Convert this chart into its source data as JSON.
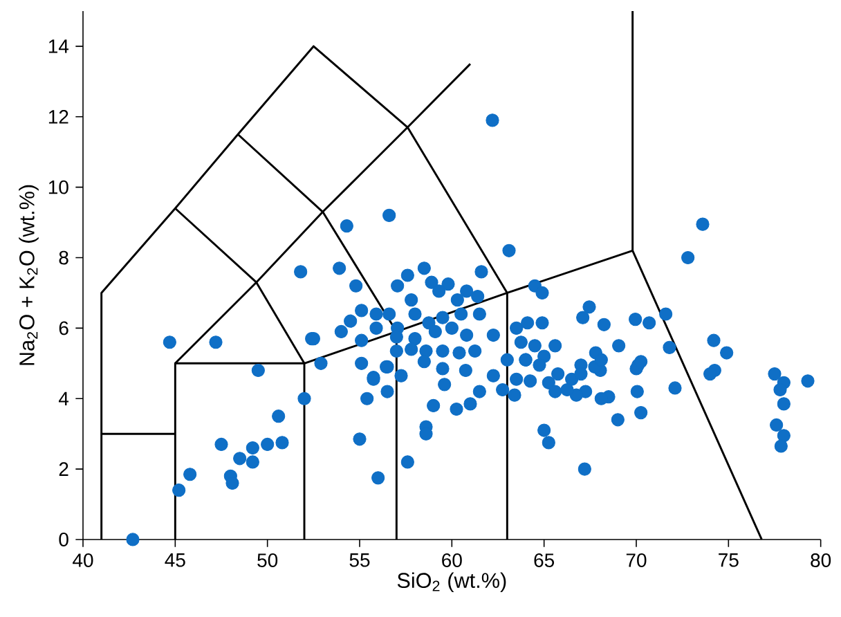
{
  "chart_data": {
    "type": "scatter",
    "xlabel": "SiO$_{2}$ (wt.%)",
    "ylabel": "Na$_{2}$O + K$_{2}$O (wt.%)",
    "xlim": [
      40,
      80
    ],
    "ylim": [
      0,
      15
    ],
    "xticks": [
      40,
      45,
      50,
      55,
      60,
      65,
      70,
      75,
      80
    ],
    "yticks": [
      0,
      2,
      4,
      6,
      8,
      10,
      12,
      14
    ],
    "grid": false,
    "legend": false,
    "series": [
      {
        "type": "line",
        "color": "#000000",
        "x": [
          41,
          41,
          45,
          48.4,
          52.5,
          57.6,
          63,
          63
        ],
        "values": [
          0,
          7,
          9.4,
          11.5,
          14,
          11.7,
          7,
          0
        ]
      },
      {
        "type": "line",
        "color": "#000000",
        "x": [
          41,
          45
        ],
        "values": [
          3,
          3
        ]
      },
      {
        "type": "line",
        "color": "#000000",
        "x": [
          45,
          45,
          52,
          52
        ],
        "values": [
          0,
          5,
          5,
          0
        ]
      },
      {
        "type": "line",
        "color": "#000000",
        "x": [
          45,
          49.4,
          53,
          57.6,
          61
        ],
        "values": [
          5,
          7.3,
          9.3,
          11.7,
          13.5
        ]
      },
      {
        "type": "line",
        "color": "#000000",
        "x": [
          52,
          57,
          63,
          69.8,
          76.8
        ],
        "values": [
          5,
          5.9,
          7,
          8.2,
          0
        ]
      },
      {
        "type": "line",
        "color": "#000000",
        "x": [
          69.8,
          69.8
        ],
        "values": [
          8.2,
          15
        ]
      },
      {
        "type": "line",
        "color": "#000000",
        "x": [
          57,
          57,
          53,
          48.4
        ],
        "values": [
          0,
          5.9,
          9.3,
          11.5
        ]
      },
      {
        "type": "line",
        "color": "#000000",
        "x": [
          45,
          49.4,
          52
        ],
        "values": [
          9.4,
          7.3,
          5
        ]
      },
      {
        "color": "#0f6fc6",
        "marker": "circle",
        "x": [
          42.7,
          44.7,
          47.2,
          49.5,
          52.0,
          50.6,
          47.5,
          49.2,
          50.0,
          50.8,
          48.5,
          49.2,
          45.8,
          45.2,
          48.0,
          48.1,
          51.8,
          53.9,
          54.3,
          52.4,
          52.9,
          54.0,
          62.2,
          56.6,
          63.1,
          58.5,
          57.6,
          57.05,
          54.8,
          61.6,
          64.5,
          64.9,
          58.9,
          59.8,
          59.3,
          60.8,
          61.4,
          60.3,
          57.8,
          55.1,
          55.9,
          56.6,
          58.0,
          54.5,
          52.5,
          55.1,
          55.1,
          55.9,
          57.05,
          58.75,
          59.5,
          60.5,
          61.5,
          62.25,
          57.0,
          58.0,
          59.1,
          60.0,
          60.8,
          57.0,
          57.8,
          58.6,
          59.5,
          60.4,
          61.25,
          56.5,
          55.75,
          58.5,
          59.5,
          60.75,
          63.5,
          64.1,
          64.9,
          63.75,
          64.5,
          63.0,
          64.0,
          65.0,
          55.0,
          56.0,
          57.6,
          55.4,
          56.5,
          55.75,
          56.45,
          57.25,
          59.0,
          58.6,
          58.6,
          60.25,
          61.0,
          61.5,
          59.6,
          62.25,
          62.75,
          63.4,
          65.0,
          65.25,
          73.6,
          72.8,
          67.45,
          67.1,
          68.25,
          69.95,
          70.7,
          71.6,
          71.8,
          69.05,
          67.8,
          65.6,
          74.2,
          74.9,
          74.25,
          74.0,
          72.1,
          70.1,
          70.0,
          70.25,
          70.05,
          70.25,
          69.0,
          68.05,
          68.5,
          68.1,
          67.0,
          67.25,
          66.75,
          67.2,
          77.5,
          78.0,
          77.8,
          78.0,
          79.3,
          77.6,
          78.0,
          77.85,
          64.0,
          64.75,
          65.75,
          66.5,
          63.5,
          64.25,
          65.25,
          65.6,
          66.25,
          67.75,
          68.1,
          67.0
        ],
        "values": [
          0,
          5.6,
          5.6,
          4.8,
          4.0,
          3.5,
          2.7,
          2.6,
          2.7,
          2.75,
          2.3,
          2.2,
          1.85,
          1.4,
          1.8,
          1.6,
          7.6,
          7.7,
          8.9,
          5.7,
          5.0,
          5.9,
          11.9,
          9.2,
          8.2,
          7.7,
          7.5,
          7.2,
          7.2,
          7.6,
          7.2,
          7.0,
          7.3,
          7.25,
          7.05,
          7.05,
          6.9,
          6.8,
          6.8,
          6.5,
          6.4,
          6.4,
          6.4,
          6.2,
          5.7,
          5.65,
          5.0,
          6.0,
          6.0,
          6.15,
          6.3,
          6.4,
          6.4,
          5.8,
          5.75,
          5.7,
          5.9,
          6.0,
          5.8,
          5.35,
          5.4,
          5.35,
          5.35,
          5.3,
          5.35,
          4.9,
          4.6,
          5.05,
          4.85,
          4.8,
          6.0,
          6.15,
          6.15,
          5.6,
          5.5,
          5.1,
          5.1,
          5.2,
          2.85,
          1.75,
          2.2,
          4.0,
          4.2,
          4.55,
          4.9,
          4.65,
          3.8,
          3.2,
          3.0,
          3.7,
          3.85,
          4.2,
          4.4,
          4.65,
          4.25,
          4.1,
          3.1,
          2.75,
          8.95,
          8.0,
          6.6,
          6.3,
          6.1,
          6.25,
          6.15,
          6.4,
          5.45,
          5.5,
          5.3,
          5.5,
          5.65,
          5.3,
          4.8,
          4.7,
          4.3,
          4.95,
          4.85,
          5.05,
          4.2,
          3.6,
          3.4,
          4.8,
          4.05,
          4.0,
          4.95,
          4.2,
          4.1,
          2.0,
          4.7,
          4.45,
          4.25,
          3.85,
          4.5,
          3.25,
          2.95,
          2.65,
          5.1,
          4.95,
          4.7,
          4.55,
          4.55,
          4.5,
          4.45,
          4.2,
          4.25,
          4.9,
          5.1,
          4.7
        ]
      }
    ]
  }
}
